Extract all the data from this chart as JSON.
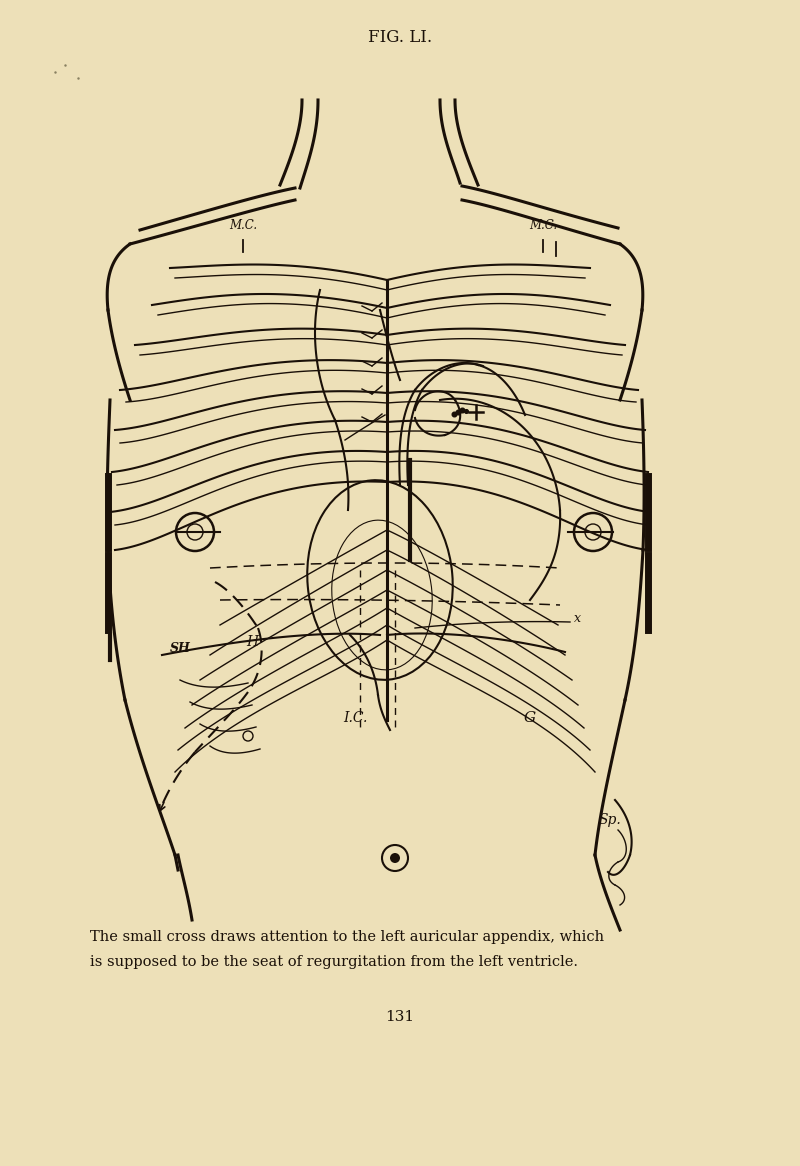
{
  "background_color": "#ede0b8",
  "title": "FIG. LI.",
  "title_fontsize": 12,
  "caption_line1": "The small cross draws attention to the left auricular appendix, which",
  "caption_line2": "is supposed to be the seat of regurgitation from the left ventricle.",
  "caption_fontsize": 10.5,
  "page_number": "131",
  "page_number_fontsize": 11,
  "ink_color": "#1a1008"
}
